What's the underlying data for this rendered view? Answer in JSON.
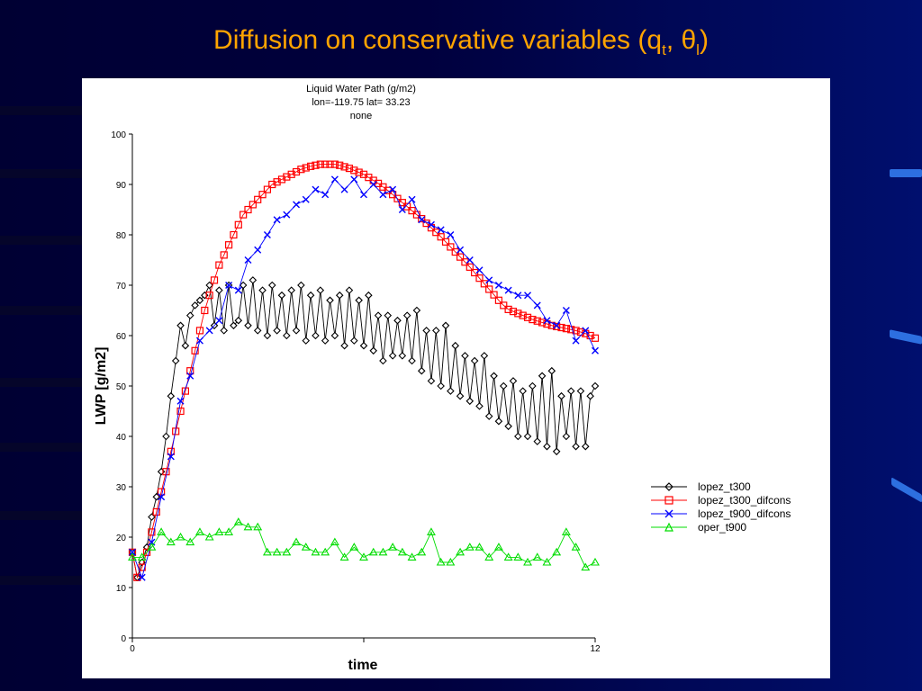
{
  "slide": {
    "title_main": "Diffusion on conservative variables (q",
    "title_sub1": "t",
    "title_sep": ", ",
    "title_theta": "θ",
    "title_sub2": "l",
    "title_close": ")"
  },
  "colors": {
    "title": "#ffa400",
    "lopez_t300": "#000000",
    "lopez_t300_difcons": "#ff0000",
    "lopez_t900_difcons": "#0000ff",
    "oper_t900": "#00dd00"
  },
  "chart_data": {
    "type": "line",
    "title": "Liquid Water Path (g/m2)",
    "subtitle1": "lon=-119.75 lat= 33.23",
    "subtitle2": "none",
    "xlabel": "time",
    "ylabel": "LWP [g/m2]",
    "xlim": [
      0,
      12
    ],
    "ylim": [
      0,
      100
    ],
    "xticks": [
      0,
      6,
      12
    ],
    "xtick_labels": [
      "0",
      "",
      "12"
    ],
    "yticks": [
      0,
      10,
      20,
      30,
      40,
      50,
      60,
      70,
      80,
      90,
      100
    ],
    "legend_position": "right",
    "series": [
      {
        "name": "lopez_t300",
        "marker": "diamond",
        "x": [
          0,
          0.125,
          0.25,
          0.375,
          0.5,
          0.625,
          0.75,
          0.875,
          1,
          1.125,
          1.25,
          1.375,
          1.5,
          1.625,
          1.75,
          1.875,
          2,
          2.125,
          2.25,
          2.375,
          2.5,
          2.625,
          2.75,
          2.875,
          3,
          3.125,
          3.25,
          3.375,
          3.5,
          3.625,
          3.75,
          3.875,
          4,
          4.125,
          4.25,
          4.375,
          4.5,
          4.625,
          4.75,
          4.875,
          5,
          5.125,
          5.25,
          5.375,
          5.5,
          5.625,
          5.75,
          5.875,
          6,
          6.125,
          6.25,
          6.375,
          6.5,
          6.625,
          6.75,
          6.875,
          7,
          7.125,
          7.25,
          7.375,
          7.5,
          7.625,
          7.75,
          7.875,
          8,
          8.125,
          8.25,
          8.375,
          8.5,
          8.625,
          8.75,
          8.875,
          9,
          9.125,
          9.25,
          9.375,
          9.5,
          9.625,
          9.75,
          9.875,
          10,
          10.125,
          10.25,
          10.375,
          10.5,
          10.625,
          10.75,
          10.875,
          11,
          11.125,
          11.25,
          11.375,
          11.5,
          11.625,
          11.75,
          11.875,
          12
        ],
        "y": [
          17,
          12,
          15,
          18,
          24,
          28,
          33,
          40,
          48,
          55,
          62,
          58,
          64,
          66,
          67,
          68,
          70,
          62,
          69,
          61,
          70,
          62,
          63,
          70,
          62,
          71,
          61,
          69,
          60,
          70,
          61,
          68,
          60,
          69,
          61,
          70,
          59,
          68,
          60,
          69,
          59,
          67,
          60,
          68,
          58,
          69,
          59,
          67,
          58,
          68,
          57,
          64,
          55,
          64,
          56,
          63,
          56,
          64,
          55,
          65,
          53,
          61,
          51,
          61,
          50,
          62,
          49,
          58,
          48,
          56,
          47,
          55,
          46,
          56,
          44,
          52,
          43,
          50,
          42,
          51,
          40,
          49,
          40,
          50,
          39,
          52,
          38,
          53,
          37,
          48,
          40,
          49,
          38,
          49,
          38,
          48,
          50
        ]
      },
      {
        "name": "lopez_t300_difcons",
        "marker": "square",
        "x": [
          0,
          0.125,
          0.25,
          0.375,
          0.5,
          0.625,
          0.75,
          0.875,
          1,
          1.125,
          1.25,
          1.375,
          1.5,
          1.625,
          1.75,
          1.875,
          2,
          2.125,
          2.25,
          2.375,
          2.5,
          2.625,
          2.75,
          2.875,
          3,
          3.125,
          3.25,
          3.375,
          3.5,
          3.625,
          3.75,
          3.875,
          4,
          4.125,
          4.25,
          4.375,
          4.5,
          4.625,
          4.75,
          4.875,
          5,
          5.125,
          5.25,
          5.375,
          5.5,
          5.625,
          5.75,
          5.875,
          6,
          6.125,
          6.25,
          6.375,
          6.5,
          6.625,
          6.75,
          6.875,
          7,
          7.125,
          7.25,
          7.375,
          7.5,
          7.625,
          7.75,
          7.875,
          8,
          8.125,
          8.25,
          8.375,
          8.5,
          8.625,
          8.75,
          8.875,
          9,
          9.125,
          9.25,
          9.375,
          9.5,
          9.625,
          9.75,
          9.875,
          10,
          10.125,
          10.25,
          10.375,
          10.5,
          10.625,
          10.75,
          10.875,
          11,
          11.125,
          11.25,
          11.375,
          11.5,
          11.625,
          11.75,
          11.875,
          12
        ],
        "y": [
          17,
          12,
          14,
          17,
          21,
          25,
          29,
          33,
          37,
          41,
          45,
          49,
          53,
          57,
          61,
          65,
          68,
          71,
          74,
          76,
          78,
          80,
          82,
          84,
          85,
          86,
          87,
          88,
          89,
          90,
          90.5,
          91,
          91.5,
          92,
          92.5,
          93,
          93.3,
          93.6,
          93.8,
          94,
          94,
          94,
          94,
          93.8,
          93.5,
          93.2,
          92.8,
          92.4,
          92,
          91.4,
          90.8,
          90.2,
          89.5,
          88.8,
          88,
          87.2,
          86.4,
          85.6,
          84.8,
          84,
          83.2,
          82.3,
          81.4,
          80.5,
          79.6,
          78.6,
          77.6,
          76.6,
          75.6,
          74.6,
          73.6,
          72.5,
          71.4,
          70.3,
          69.2,
          68.1,
          67,
          66,
          65.2,
          64.8,
          64.4,
          64,
          63.6,
          63.2,
          62.9,
          62.6,
          62.3,
          62,
          61.8,
          61.6,
          61.4,
          61.2,
          61,
          60.7,
          60.4,
          60,
          59.5
        ]
      },
      {
        "name": "lopez_t900_difcons",
        "marker": "x",
        "x": [
          0,
          0.25,
          0.5,
          0.75,
          1,
          1.25,
          1.5,
          1.75,
          2,
          2.25,
          2.5,
          2.75,
          3,
          3.25,
          3.5,
          3.75,
          4,
          4.25,
          4.5,
          4.75,
          5,
          5.25,
          5.5,
          5.75,
          6,
          6.25,
          6.5,
          6.75,
          7,
          7.25,
          7.5,
          7.75,
          8,
          8.25,
          8.5,
          8.75,
          9,
          9.25,
          9.5,
          9.75,
          10,
          10.25,
          10.5,
          10.75,
          11,
          11.25,
          11.5,
          11.75,
          12
        ],
        "y": [
          17,
          12,
          19,
          28,
          36,
          47,
          52,
          59,
          61,
          63,
          70,
          69,
          75,
          77,
          80,
          83,
          84,
          86,
          87,
          89,
          88,
          91,
          89,
          91,
          88,
          90,
          88,
          89,
          85,
          87,
          83,
          82,
          81,
          80,
          77,
          75,
          73,
          71,
          70,
          69,
          68,
          68,
          66,
          63,
          62,
          65,
          59,
          61,
          57
        ]
      },
      {
        "name": "oper_t900",
        "marker": "triangle",
        "x": [
          0,
          0.25,
          0.5,
          0.75,
          1,
          1.25,
          1.5,
          1.75,
          2,
          2.25,
          2.5,
          2.75,
          3,
          3.25,
          3.5,
          3.75,
          4,
          4.25,
          4.5,
          4.75,
          5,
          5.25,
          5.5,
          5.75,
          6,
          6.25,
          6.5,
          6.75,
          7,
          7.25,
          7.5,
          7.75,
          8,
          8.25,
          8.5,
          8.75,
          9,
          9.25,
          9.5,
          9.75,
          10,
          10.25,
          10.5,
          10.75,
          11,
          11.25,
          11.5,
          11.75,
          12
        ],
        "y": [
          16,
          16,
          18,
          21,
          19,
          20,
          19,
          21,
          20,
          21,
          21,
          23,
          22,
          22,
          17,
          17,
          17,
          19,
          18,
          17,
          17,
          19,
          16,
          18,
          16,
          17,
          17,
          18,
          17,
          16,
          17,
          21,
          15,
          15,
          17,
          18,
          18,
          16,
          18,
          16,
          16,
          15,
          16,
          15,
          17,
          21,
          18,
          14,
          15
        ]
      }
    ]
  }
}
